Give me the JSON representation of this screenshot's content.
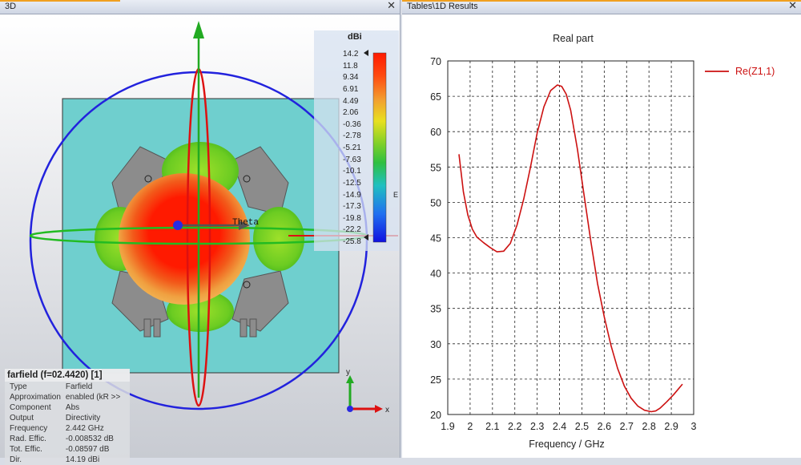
{
  "left_panel": {
    "tab_title": "3D",
    "theta_label": "Theta",
    "farfield": {
      "header": "farfield (f=02.4420) [1]",
      "rows": [
        {
          "k": "Type",
          "v": "Farfield"
        },
        {
          "k": "Approximation",
          "v": "enabled (kR >>"
        },
        {
          "k": "Component",
          "v": "Abs"
        },
        {
          "k": "Output",
          "v": "Directivity"
        },
        {
          "k": "Frequency",
          "v": "2.442 GHz"
        },
        {
          "k": "Rad. Effic.",
          "v": "-0.008532 dB"
        },
        {
          "k": "Tot. Effic.",
          "v": "-0.08597 dB"
        },
        {
          "k": "Dir.",
          "v": "14.19 dBi"
        }
      ]
    },
    "colorbar": {
      "unit": "dBi",
      "labels": [
        "14.2",
        "11.8",
        "9.34",
        "6.91",
        "4.49",
        "2.06",
        "-0.36",
        "-2.78",
        "-5.21",
        "-7.63",
        "-10.1",
        "-12.5",
        "-14.9",
        "-17.3",
        "-19.8",
        "-22.2",
        "-25.8"
      ],
      "edge_letter": "E"
    },
    "axes": {
      "y": "y",
      "x": "x"
    }
  },
  "right_panel": {
    "tab_title": "Tables\\1D Results",
    "chart_data": {
      "type": "line",
      "title": "Real part",
      "xlabel": "Frequency / GHz",
      "ylabel": "",
      "xlim": [
        1.9,
        3
      ],
      "ylim": [
        20,
        70
      ],
      "xticks": [
        "1.9",
        "2",
        "2.1",
        "2.2",
        "2.3",
        "2.4",
        "2.5",
        "2.6",
        "2.7",
        "2.8",
        "2.9",
        "3"
      ],
      "yticks": [
        "20",
        "25",
        "30",
        "35",
        "40",
        "45",
        "50",
        "55",
        "60",
        "65",
        "70"
      ],
      "grid": true,
      "legend_position": "top-right",
      "series": [
        {
          "name": "Re(Z1,1)",
          "color": "#cc1111",
          "x": [
            1.95,
            1.97,
            1.99,
            2.01,
            2.03,
            2.06,
            2.09,
            2.12,
            2.15,
            2.18,
            2.21,
            2.24,
            2.27,
            2.3,
            2.33,
            2.36,
            2.39,
            2.41,
            2.43,
            2.45,
            2.48,
            2.51,
            2.54,
            2.57,
            2.6,
            2.63,
            2.66,
            2.69,
            2.72,
            2.75,
            2.78,
            2.81,
            2.83,
            2.85,
            2.88,
            2.91,
            2.95
          ],
          "y": [
            56.8,
            51.5,
            48.2,
            46.2,
            45.1,
            44.3,
            43.6,
            43.0,
            43.1,
            44.2,
            46.8,
            50.5,
            55.0,
            59.8,
            63.5,
            65.8,
            66.6,
            66.4,
            65.3,
            63.0,
            57.5,
            51.0,
            44.5,
            38.5,
            33.8,
            29.8,
            26.5,
            24.0,
            22.3,
            21.2,
            20.6,
            20.4,
            20.5,
            20.9,
            21.8,
            22.8,
            24.3
          ]
        }
      ]
    }
  }
}
